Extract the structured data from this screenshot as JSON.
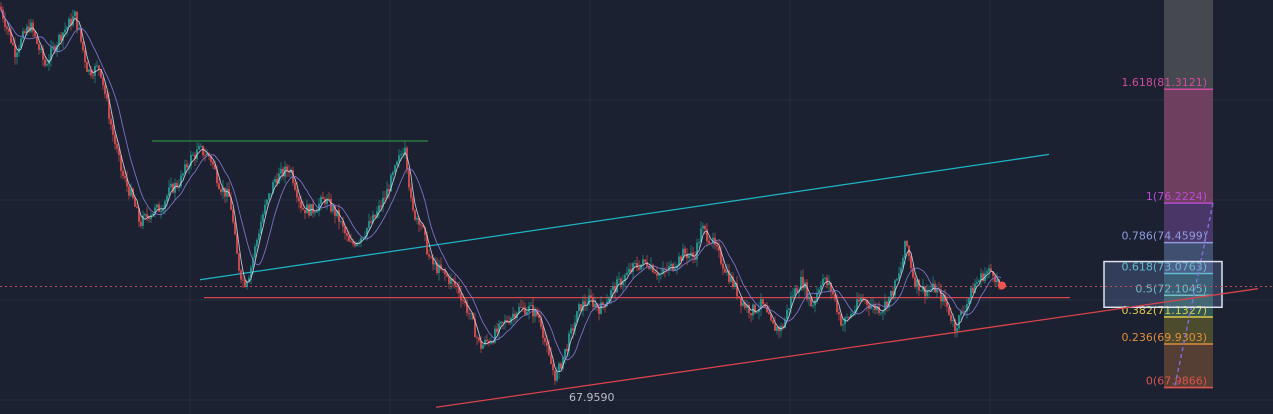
{
  "colors": {
    "background": "#1b2130",
    "grid": "#262d3b",
    "candle_up": "#26a69a",
    "candle_down": "#ef5350",
    "ma_fast": "#d8d8ee",
    "ma_slow": "#8b7fe0",
    "resistance_green": "#2e8b3d",
    "channel_cyan": "#1fb5c6",
    "support_red": "#d9434d",
    "price_line": "#c24a52",
    "fib_target_line": "#7b6cd9"
  },
  "chart_data": {
    "type": "candlestick",
    "title": "",
    "xlabel": "",
    "ylabel": "",
    "ylim": [
      66.8,
      85.3
    ],
    "grid": true,
    "legend": "none",
    "path_points": [
      [
        0,
        85.0
      ],
      [
        15,
        83.0
      ],
      [
        30,
        84.2
      ],
      [
        45,
        82.4
      ],
      [
        60,
        83.7
      ],
      [
        75,
        84.6
      ],
      [
        88,
        82.1
      ],
      [
        100,
        82.3
      ],
      [
        112,
        79.5
      ],
      [
        122,
        77.5
      ],
      [
        132,
        76.5
      ],
      [
        140,
        75.3
      ],
      [
        150,
        75.8
      ],
      [
        160,
        76.0
      ],
      [
        170,
        76.8
      ],
      [
        180,
        77.2
      ],
      [
        190,
        78.2
      ],
      [
        200,
        78.6
      ],
      [
        210,
        78.3
      ],
      [
        220,
        77.0
      ],
      [
        230,
        76.4
      ],
      [
        238,
        73.5
      ],
      [
        244,
        72.6
      ],
      [
        250,
        73.2
      ],
      [
        262,
        75.6
      ],
      [
        275,
        77.3
      ],
      [
        290,
        77.8
      ],
      [
        302,
        76.0
      ],
      [
        312,
        75.9
      ],
      [
        325,
        76.4
      ],
      [
        338,
        75.6
      ],
      [
        350,
        74.3
      ],
      [
        362,
        74.8
      ],
      [
        375,
        75.6
      ],
      [
        385,
        76.5
      ],
      [
        396,
        77.8
      ],
      [
        405,
        78.9
      ],
      [
        412,
        75.8
      ],
      [
        420,
        75.5
      ],
      [
        430,
        73.6
      ],
      [
        445,
        73.0
      ],
      [
        458,
        72.4
      ],
      [
        470,
        71.2
      ],
      [
        480,
        69.8
      ],
      [
        492,
        70.2
      ],
      [
        505,
        70.9
      ],
      [
        518,
        71.5
      ],
      [
        530,
        71.5
      ],
      [
        540,
        71.1
      ],
      [
        548,
        69.4
      ],
      [
        556,
        68.4
      ],
      [
        568,
        70.0
      ],
      [
        580,
        71.6
      ],
      [
        590,
        71.9
      ],
      [
        600,
        71.5
      ],
      [
        612,
        72.3
      ],
      [
        622,
        72.8
      ],
      [
        635,
        73.4
      ],
      [
        648,
        73.6
      ],
      [
        660,
        73.0
      ],
      [
        672,
        73.4
      ],
      [
        684,
        74.0
      ],
      [
        694,
        73.8
      ],
      [
        702,
        75.1
      ],
      [
        712,
        74.5
      ],
      [
        722,
        73.6
      ],
      [
        732,
        72.7
      ],
      [
        742,
        71.8
      ],
      [
        752,
        71.4
      ],
      [
        762,
        71.7
      ],
      [
        772,
        70.7
      ],
      [
        782,
        70.6
      ],
      [
        792,
        72.1
      ],
      [
        802,
        72.8
      ],
      [
        812,
        71.6
      ],
      [
        822,
        72.9
      ],
      [
        832,
        72.3
      ],
      [
        842,
        70.8
      ],
      [
        852,
        71.3
      ],
      [
        862,
        72.0
      ],
      [
        872,
        71.6
      ],
      [
        882,
        71.5
      ],
      [
        892,
        72.2
      ],
      [
        900,
        73.1
      ],
      [
        906,
        74.5
      ],
      [
        914,
        72.8
      ],
      [
        924,
        72.3
      ],
      [
        935,
        72.4
      ],
      [
        945,
        71.8
      ],
      [
        955,
        70.7
      ],
      [
        965,
        71.6
      ],
      [
        975,
        72.6
      ],
      [
        985,
        73.1
      ],
      [
        993,
        73.2
      ],
      [
        1001,
        72.2
      ]
    ],
    "annotations": [
      {
        "type": "horizontal_line",
        "color": "resistance_green",
        "x_range": [
          152,
          428
        ],
        "price": 79.0
      },
      {
        "type": "trend_line",
        "color": "channel_cyan",
        "points": [
          [
            200,
            72.8
          ],
          [
            1049,
            78.4
          ]
        ]
      },
      {
        "type": "horizontal_line",
        "color": "support_red",
        "x_range": [
          204,
          1070
        ],
        "price": 72.0
      },
      {
        "type": "trend_line",
        "color": "support_red",
        "points": [
          [
            436,
            67.1
          ],
          [
            1258,
            72.4
          ]
        ]
      }
    ],
    "low_marker": {
      "label": "67.9590",
      "x": 556,
      "price": 67.96
    },
    "last_price": 72.5,
    "fib_levels": [
      {
        "ratio": "1.618",
        "price": "81.3121",
        "label": "1.618(81.3121)",
        "color": "#d24b9f",
        "band": "#8b4a6e"
      },
      {
        "ratio": "1",
        "price": "76.2224",
        "label": "1(76.2224)",
        "color": "#b94cd4",
        "band": "#5b3f7a"
      },
      {
        "ratio": "0.786",
        "price": "74.4599",
        "label": "0.786(74.4599)",
        "color": "#8f9be0",
        "band": "#4e5d85"
      },
      {
        "ratio": "0.618",
        "price": "73.0763",
        "label": "0.618(73.0763)",
        "color": "#5ec6cf",
        "band": "#2f5c67"
      },
      {
        "ratio": "0.5",
        "price": "72.1045",
        "label": "0.5(72.1045)",
        "color": "#6fc8c0",
        "band": "#3b6b5f"
      },
      {
        "ratio": "0.382",
        "price": "71.1327",
        "label": "0.382(71.1327)",
        "color": "#e0c64d",
        "band": "#5d5a2c"
      },
      {
        "ratio": "0.236",
        "price": "69.9303",
        "label": "0.236(69.9303)",
        "color": "#e08c3d",
        "band": "#6a4a36"
      },
      {
        "ratio": "0",
        "price": "67.9866",
        "label": "0(67.9866)",
        "color": "#d9534f",
        "band": "#6b3a3e"
      }
    ]
  }
}
